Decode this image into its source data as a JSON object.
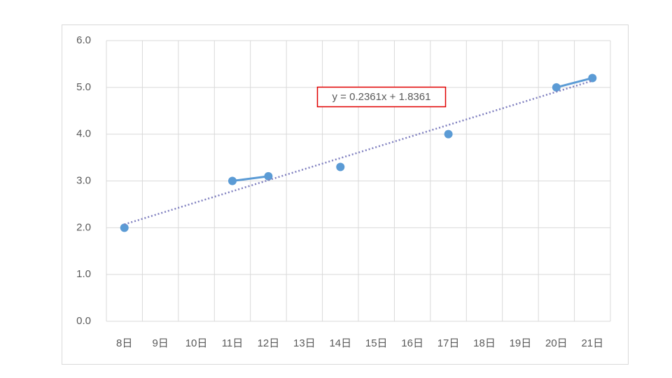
{
  "chart_data": {
    "type": "line",
    "categories": [
      "8日",
      "9日",
      "10日",
      "11日",
      "12日",
      "13日",
      "14日",
      "15日",
      "16日",
      "17日",
      "18日",
      "19日",
      "20日",
      "21日"
    ],
    "series": [
      {
        "color": "#5b9bd5",
        "values": [
          2.0,
          null,
          null,
          3.0,
          3.1,
          null,
          3.3,
          null,
          null,
          4.0,
          null,
          null,
          5.0,
          5.2
        ]
      }
    ],
    "ylim": [
      0,
      6
    ],
    "yticks": [
      {
        "value": 0,
        "label": "0.0"
      },
      {
        "value": 1,
        "label": "1.0"
      },
      {
        "value": 2,
        "label": "2.0"
      },
      {
        "value": 3,
        "label": "3.0"
      },
      {
        "value": 4,
        "label": "4.0"
      },
      {
        "value": 5,
        "label": "5.0"
      },
      {
        "value": 6,
        "label": "6.0"
      }
    ],
    "grid": true,
    "trendline": {
      "equation": "y = 0.2361x + 1.8361",
      "slope": 0.2361,
      "intercept": 1.8361,
      "color": "#7f7fbf"
    }
  }
}
